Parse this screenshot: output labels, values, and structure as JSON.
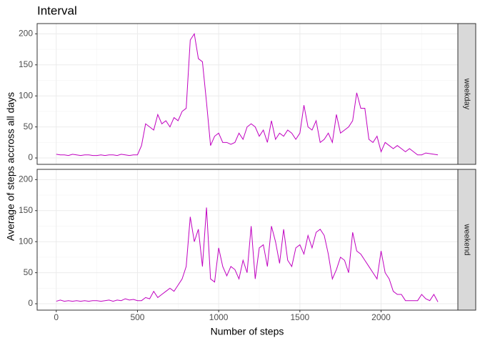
{
  "chart_data": {
    "type": "line",
    "title": "Interval",
    "x_label": "Number of steps",
    "y_label": "Average of steps accross all days",
    "x": [
      0,
      25,
      50,
      75,
      100,
      125,
      150,
      175,
      200,
      225,
      250,
      275,
      300,
      325,
      350,
      375,
      400,
      425,
      450,
      475,
      500,
      525,
      550,
      575,
      600,
      625,
      650,
      675,
      700,
      725,
      750,
      775,
      800,
      825,
      850,
      875,
      900,
      925,
      950,
      975,
      1000,
      1025,
      1050,
      1075,
      1100,
      1125,
      1150,
      1175,
      1200,
      1225,
      1250,
      1275,
      1300,
      1325,
      1350,
      1375,
      1400,
      1425,
      1450,
      1475,
      1500,
      1525,
      1550,
      1575,
      1600,
      1625,
      1650,
      1675,
      1700,
      1725,
      1750,
      1775,
      1800,
      1825,
      1850,
      1875,
      1900,
      1925,
      1950,
      1975,
      2000,
      2025,
      2050,
      2075,
      2100,
      2125,
      2150,
      2175,
      2200,
      2225,
      2250,
      2275,
      2300,
      2325,
      2350
    ],
    "series": [
      {
        "name": "weekday",
        "color": "#c000c0",
        "values": [
          6,
          5,
          5,
          4,
          6,
          5,
          4,
          5,
          5,
          4,
          4,
          5,
          4,
          5,
          5,
          4,
          6,
          5,
          4,
          5,
          5,
          20,
          55,
          50,
          45,
          70,
          55,
          60,
          50,
          65,
          60,
          75,
          80,
          190,
          200,
          160,
          155,
          90,
          20,
          35,
          40,
          25,
          25,
          22,
          25,
          40,
          30,
          50,
          55,
          50,
          35,
          45,
          25,
          60,
          30,
          40,
          35,
          45,
          40,
          30,
          40,
          85,
          50,
          45,
          60,
          25,
          30,
          40,
          25,
          70,
          40,
          45,
          50,
          60,
          105,
          80,
          80,
          30,
          25,
          35,
          10,
          25,
          20,
          15,
          20,
          15,
          10,
          15,
          10,
          5,
          5,
          8,
          7,
          6,
          5
        ]
      },
      {
        "name": "weekend",
        "color": "#c000c0",
        "values": [
          4,
          6,
          4,
          5,
          4,
          5,
          4,
          5,
          4,
          5,
          5,
          4,
          5,
          6,
          4,
          6,
          5,
          8,
          6,
          7,
          5,
          5,
          10,
          8,
          20,
          10,
          15,
          20,
          25,
          20,
          30,
          40,
          60,
          140,
          100,
          120,
          60,
          155,
          40,
          35,
          90,
          60,
          45,
          60,
          55,
          40,
          70,
          50,
          125,
          40,
          90,
          95,
          60,
          125,
          100,
          65,
          120,
          70,
          60,
          90,
          95,
          80,
          110,
          90,
          115,
          120,
          110,
          80,
          40,
          55,
          75,
          70,
          50,
          115,
          85,
          80,
          70,
          60,
          50,
          40,
          85,
          50,
          40,
          20,
          15,
          15,
          5,
          5,
          5,
          5,
          15,
          8,
          5,
          15,
          3
        ]
      }
    ],
    "xlim": [
      -117.75,
      2472.75
    ],
    "xticks": [
      0,
      500,
      1000,
      1500,
      2000
    ],
    "ylim": [
      -10.3,
      216.5
    ],
    "yticks": [
      0,
      50,
      100,
      150,
      200
    ],
    "grid": true
  }
}
